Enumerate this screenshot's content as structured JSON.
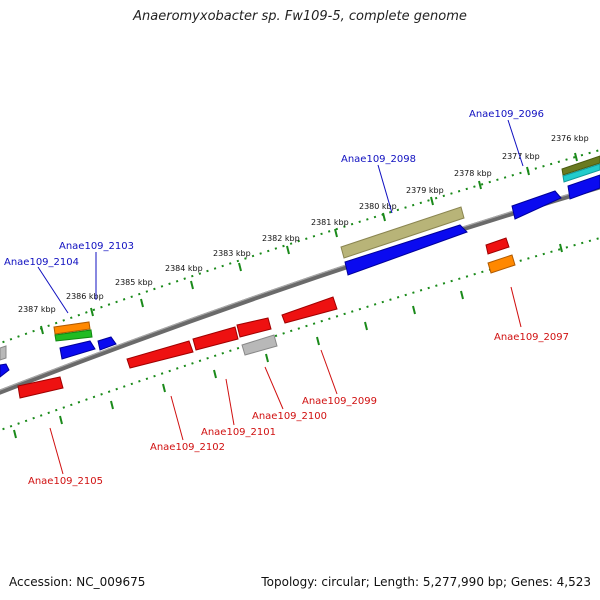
{
  "title": "Anaeromyxobacter sp. Fw109-5, complete genome",
  "footer": {
    "accession": "Accession: NC_009675",
    "summary": "Topology: circular; Length: 5,277,990 bp; Genes: 4,523"
  },
  "colors": {
    "backbone": "#7a7a7a",
    "ticks": "#1a8a1a",
    "forward_label": "#1010c0",
    "reverse_label": "#d01010",
    "blue": "#0a0af0",
    "red": "#ee1111",
    "gray": "#b8b8b8",
    "olive": "#b8b478",
    "orange": "#ff8800",
    "green": "#22bb22",
    "cyan": "#22cccc"
  },
  "ticks": [
    "2376 kbp",
    "2377 kbp",
    "2378 kbp",
    "2379 kbp",
    "2380 kbp",
    "2381 kbp",
    "2382 kbp",
    "2383 kbp",
    "2384 kbp",
    "2385 kbp",
    "2386 kbp",
    "2387 kbp"
  ],
  "gene_labels": {
    "forward": [
      "Anae109_2096",
      "Anae109_2098",
      "Anae109_2103",
      "Anae109_2104"
    ],
    "reverse": [
      "Anae109_2097",
      "Anae109_2099",
      "Anae109_2100",
      "Anae109_2101",
      "Anae109_2102",
      "Anae109_2105"
    ]
  }
}
